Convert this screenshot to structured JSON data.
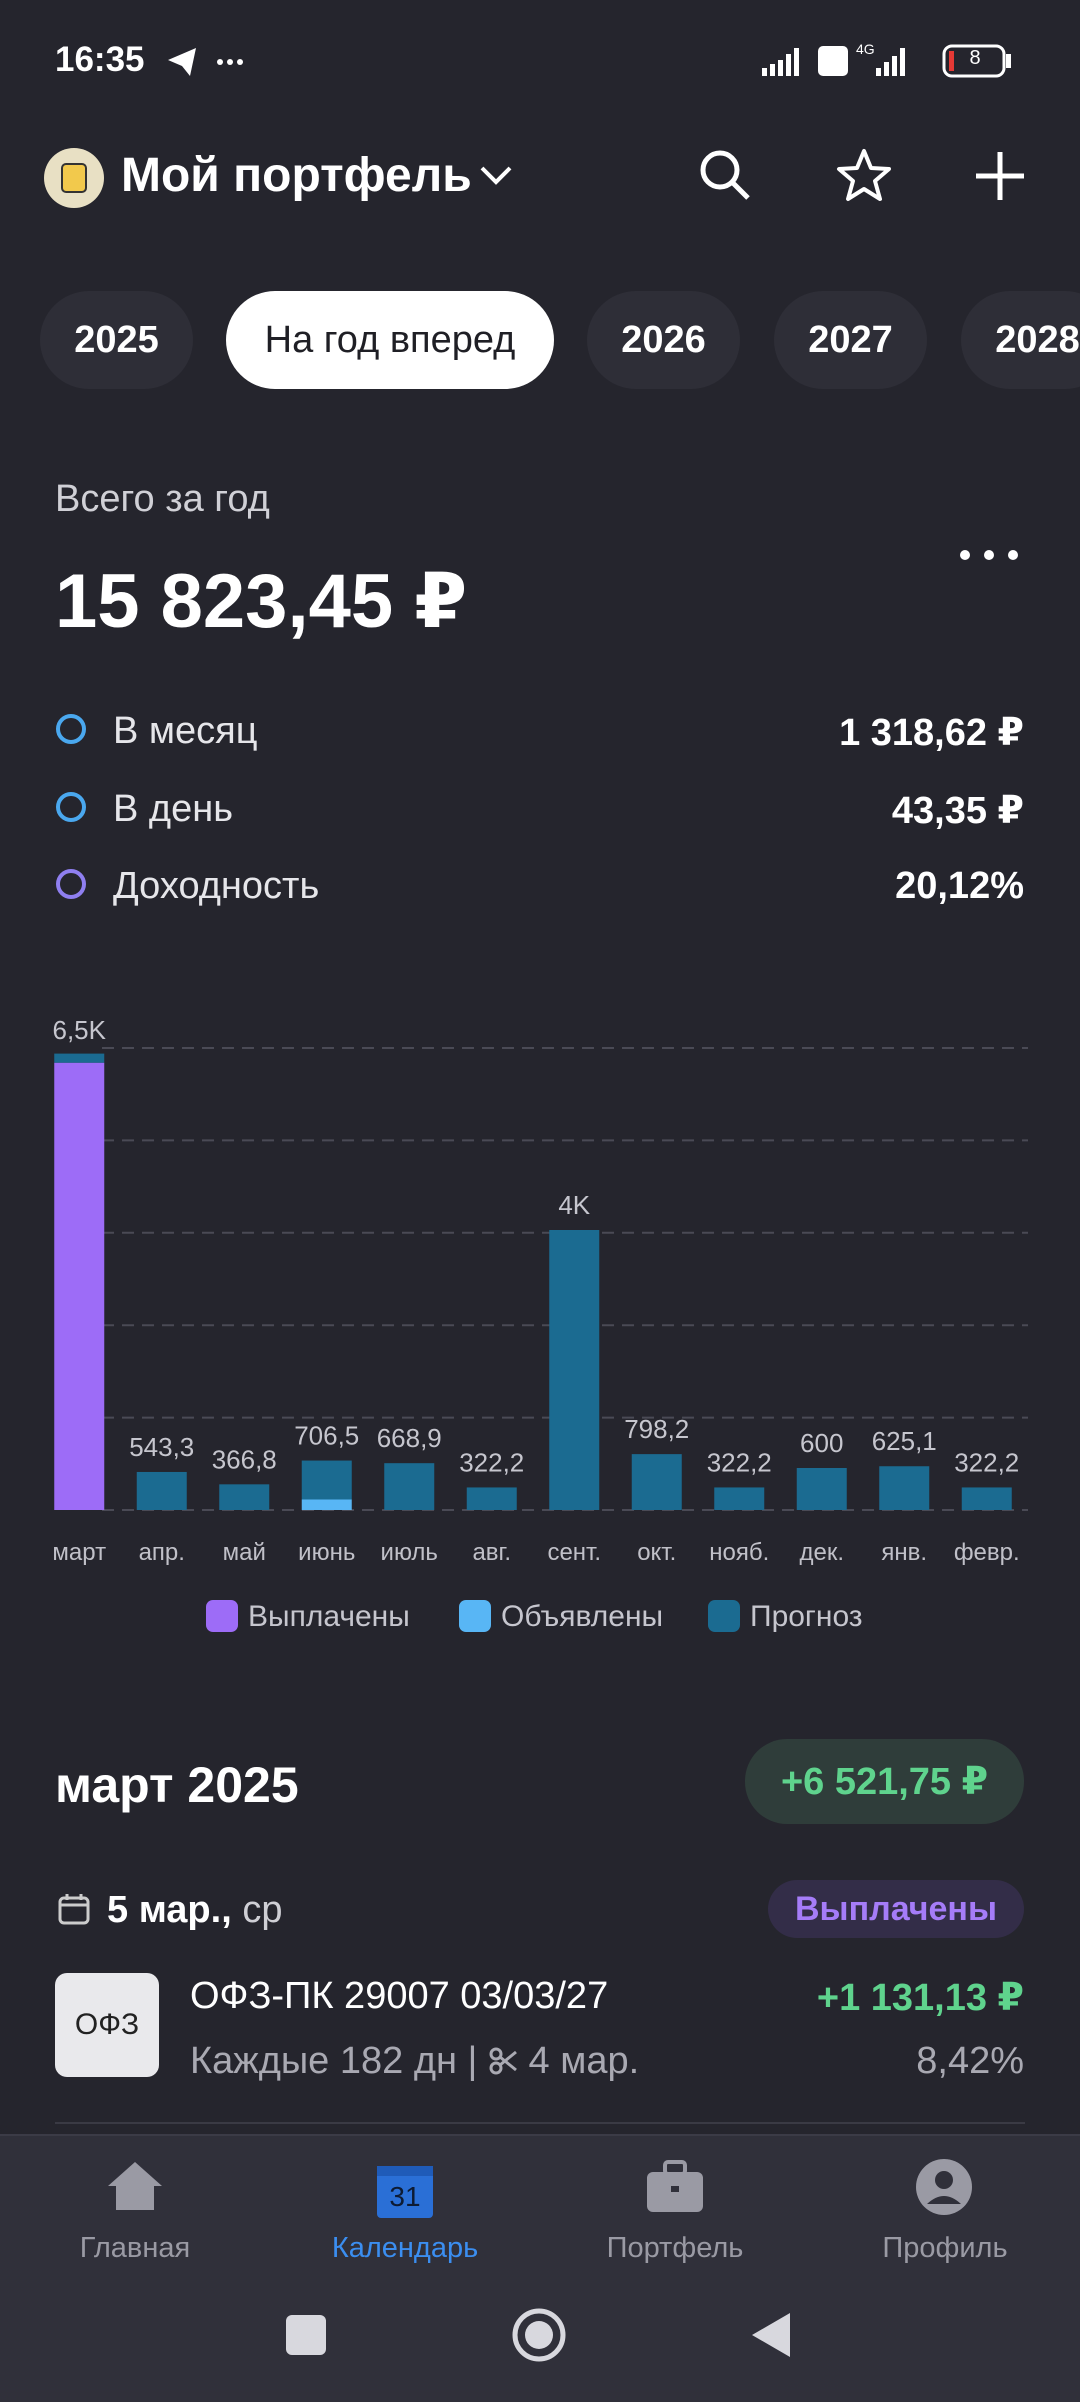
{
  "status_bar": {
    "time": "16:35",
    "battery": "8"
  },
  "header": {
    "title": "Мой портфель"
  },
  "tabs": [
    "2025",
    "На год вперед",
    "2026",
    "2027",
    "2028"
  ],
  "summary": {
    "label": "Всего за год",
    "amount": "15 823,45 ₽",
    "rows": [
      {
        "label": "В месяц",
        "value": "1 318,62 ₽"
      },
      {
        "label": "В день",
        "value": "43,35 ₽"
      },
      {
        "label": "Доходность",
        "value": "20,12%"
      }
    ]
  },
  "chart_data": {
    "type": "stacked_bar",
    "categories": [
      "март",
      "апр.",
      "май",
      "июнь",
      "июль",
      "авг.",
      "сент.",
      "окт.",
      "нояб.",
      "дек.",
      "янв.",
      "февр."
    ],
    "series": [
      {
        "name": "Выплачены",
        "color": "#9d6cf7",
        "values": [
          6390,
          0,
          0,
          0,
          0,
          0,
          0,
          0,
          0,
          0,
          0,
          0
        ]
      },
      {
        "name": "Объявлены",
        "color": "#58b6f5",
        "values": [
          0,
          0,
          0,
          150,
          0,
          0,
          0,
          0,
          0,
          0,
          0,
          0
        ]
      },
      {
        "name": "Прогноз",
        "color": "#1b6b91",
        "values": [
          130,
          543.3,
          366.8,
          556.5,
          668.9,
          322.2,
          4000,
          798.2,
          322.2,
          600,
          625.1,
          322.2
        ]
      }
    ],
    "totals": {
      "values": [
        6500,
        543.3,
        366.8,
        706.5,
        668.9,
        322.2,
        4000,
        798.2,
        322.2,
        600,
        625.1,
        322.2
      ],
      "value_labels": [
        "6,5K",
        "543,3",
        "366,8",
        "706,5",
        "668,9",
        "322,2",
        "4K",
        "798,2",
        "322,2",
        "600",
        "625,1",
        "322,2"
      ]
    },
    "ylim": [
      0,
      6600
    ],
    "gridlines": [
      0,
      1320,
      2640,
      3960,
      5280,
      6600
    ],
    "grid": true
  },
  "section": {
    "title": "март 2025",
    "total": "+6 521,75 ₽",
    "date": "5 мар.,",
    "weekday": "ср",
    "status": "Выплачены",
    "item": {
      "icon": "ОФЗ",
      "name": "ОФЗ-ПК 29007 03/03/27",
      "period": "Каждые 182 дн |",
      "cut": "4 мар.",
      "amount": "+1 131,13 ₽",
      "yield": "8,42%"
    }
  },
  "nav": [
    "Главная",
    "Календарь",
    "Портфель",
    "Профиль"
  ],
  "calendar_day": "31"
}
